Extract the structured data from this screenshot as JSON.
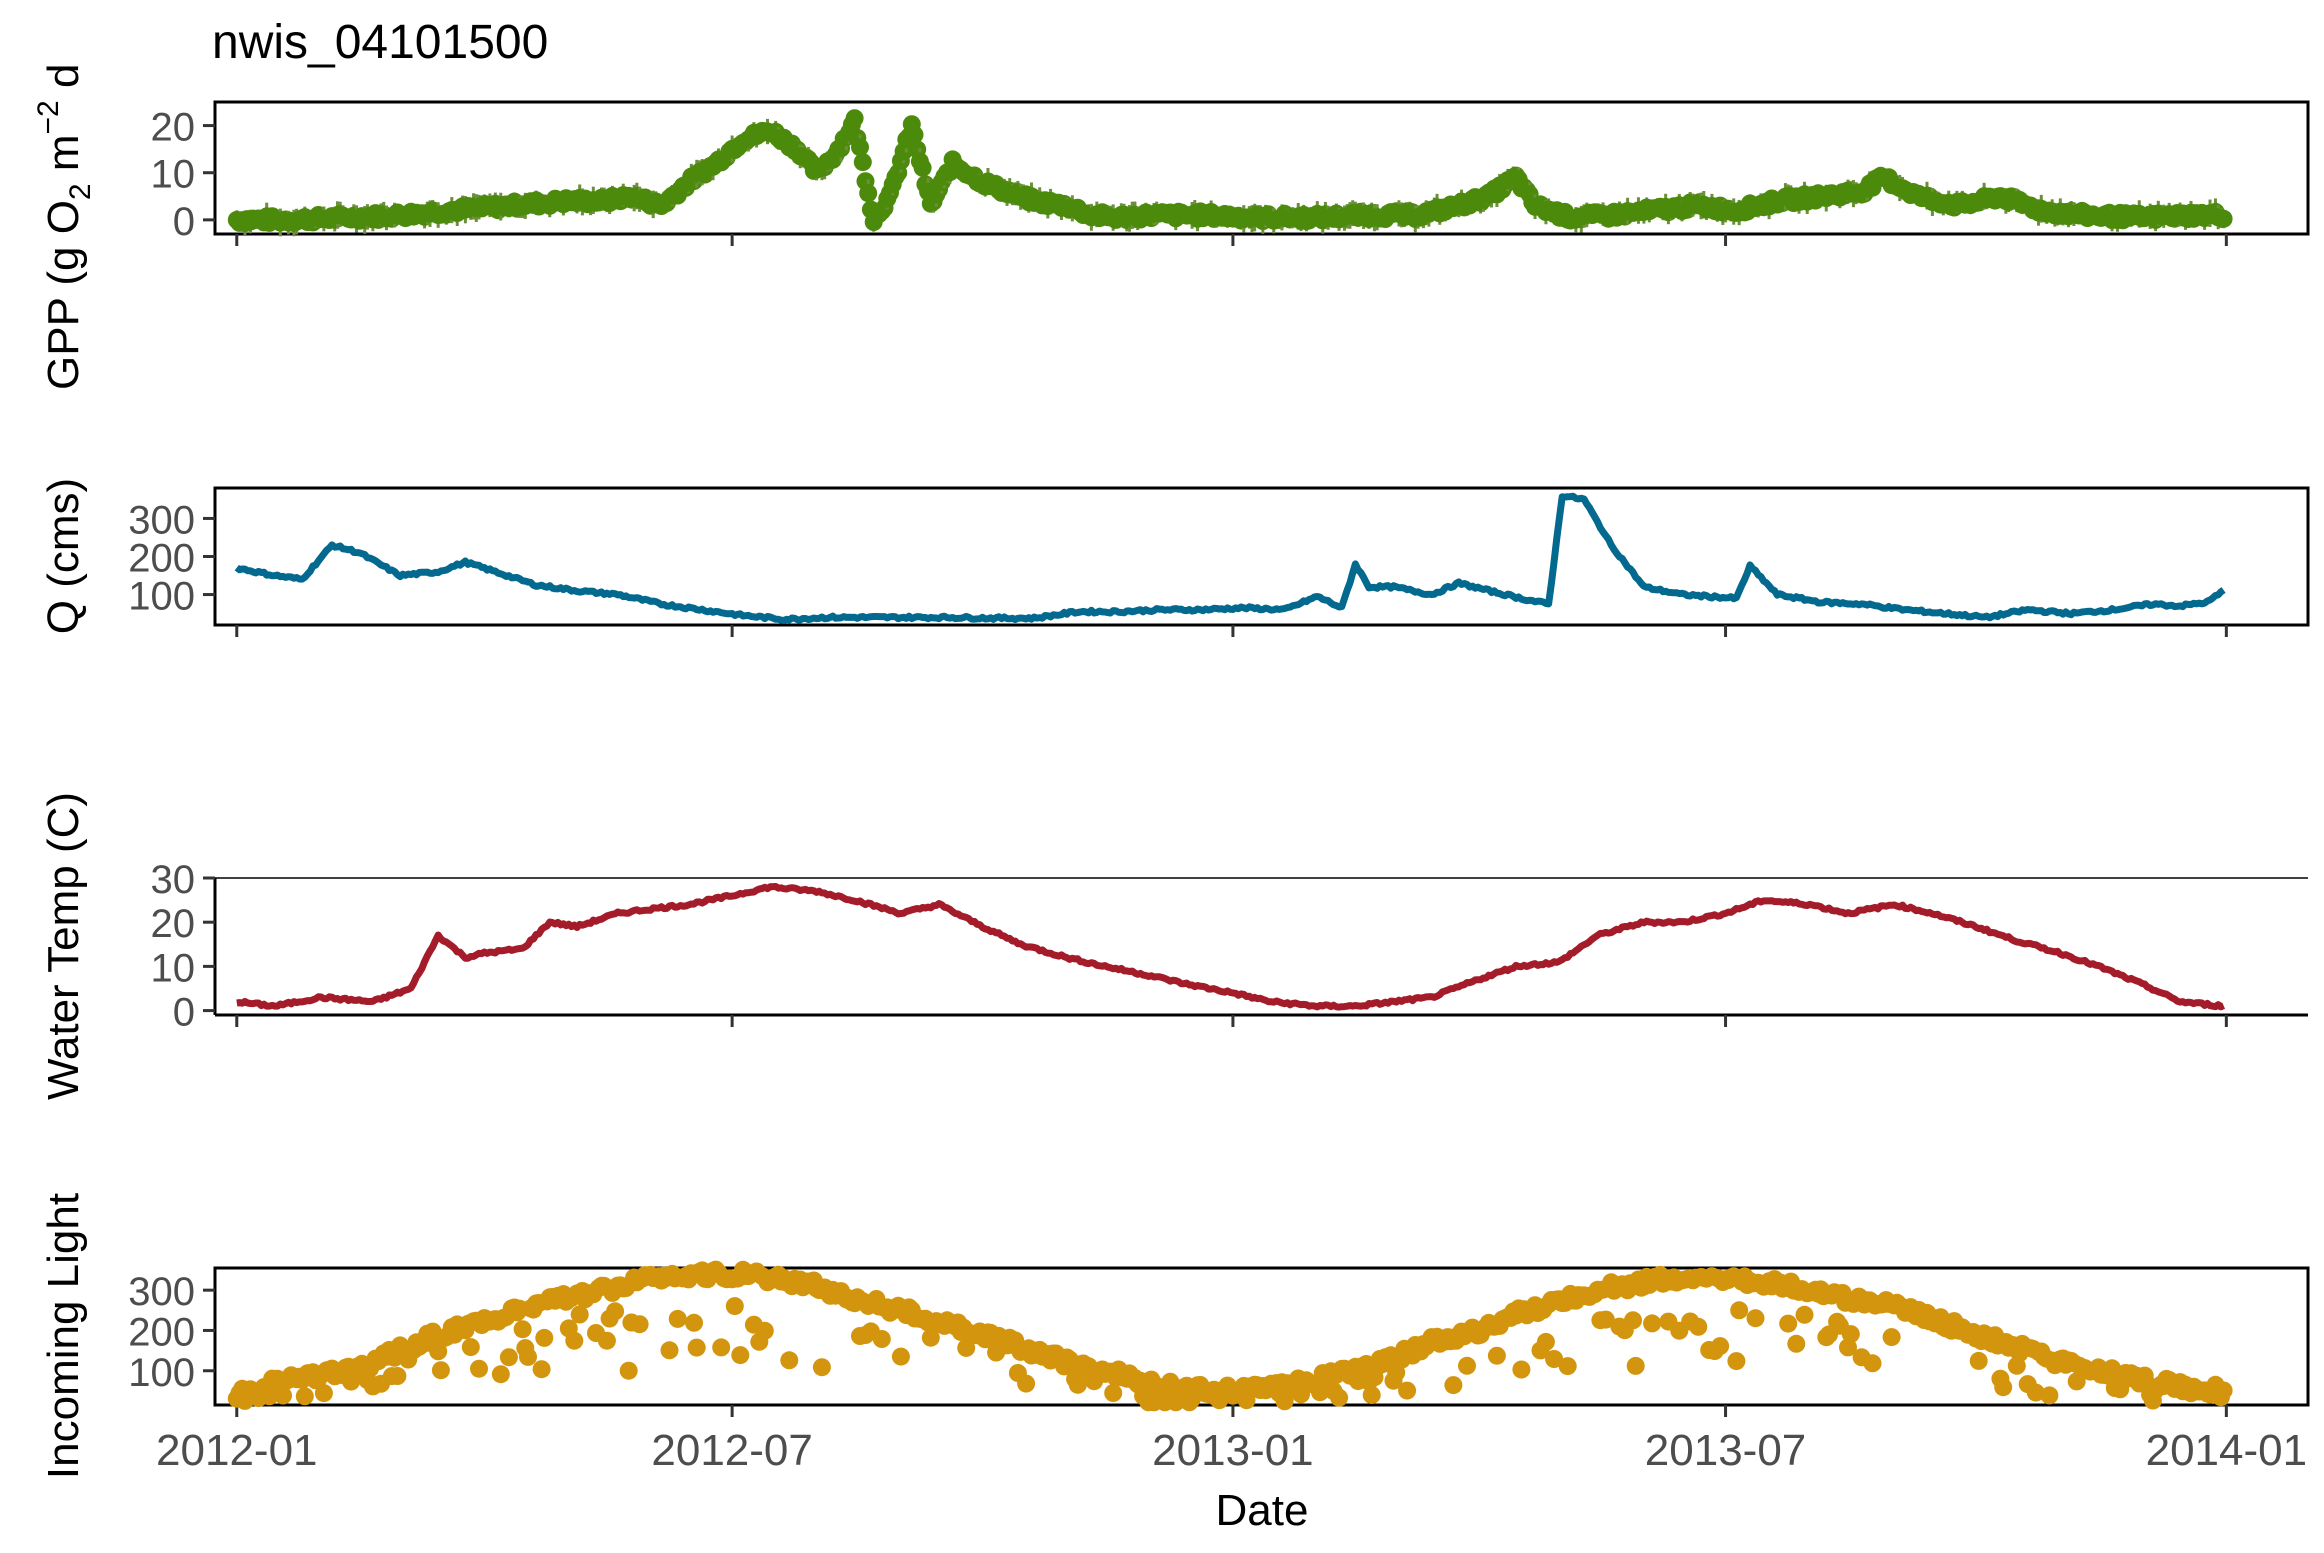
{
  "figure": {
    "title": "nwis_04101500",
    "xlabel": "Date",
    "x_tick_labels": [
      "2012-01",
      "2012-07",
      "2013-01",
      "2013-07",
      "2014-01"
    ],
    "x_tick_dates": [
      "2012-01-01",
      "2012-07-01",
      "2013-01-01",
      "2013-07-01",
      "2014-01-01"
    ],
    "xlim": [
      "2011-12-24",
      "2014-01-31"
    ]
  },
  "chart_data": [
    {
      "type": "scatter",
      "panel": "gpp",
      "ylabel": "GPP (g O2 m-2 d-1)",
      "ylabel_parts": {
        "pre": "GPP (g  O",
        "sub": "2",
        "mid": " m",
        "sup1": "−2",
        "post": " d"
      },
      "ylim": [
        -3,
        25
      ],
      "y_ticks": [
        0,
        10,
        20
      ],
      "y_tick_labels": [
        "0",
        "10",
        "20"
      ],
      "color": "#4c8a0b",
      "error_bars": true,
      "series": [
        {
          "dates": [
            "2012-01-01",
            "2012-01-20",
            "2012-02-10",
            "2012-03-01",
            "2012-03-20",
            "2012-04-10",
            "2012-05-01",
            "2012-05-15",
            "2012-05-25",
            "2012-06-05",
            "2012-06-15",
            "2012-06-25",
            "2012-07-05",
            "2012-07-15",
            "2012-07-25",
            "2012-08-01",
            "2012-08-08",
            "2012-08-15",
            "2012-08-22",
            "2012-08-28",
            "2012-09-05",
            "2012-09-12",
            "2012-09-20",
            "2012-10-01",
            "2012-10-10",
            "2012-10-20",
            "2012-11-01",
            "2012-11-10",
            "2012-11-20",
            "2012-12-01",
            "2012-12-20",
            "2013-01-10",
            "2013-02-01",
            "2013-02-20",
            "2013-03-10",
            "2013-03-25",
            "2013-04-05",
            "2013-04-15",
            "2013-04-22",
            "2013-05-05",
            "2013-05-20",
            "2013-06-05",
            "2013-06-20",
            "2013-07-05",
            "2013-07-20",
            "2013-08-05",
            "2013-08-20",
            "2013-08-28",
            "2013-09-10",
            "2013-09-25",
            "2013-10-10",
            "2013-10-25",
            "2013-11-10",
            "2013-12-01",
            "2013-12-20",
            "2013-12-31"
          ],
          "values": [
            0,
            0,
            0.5,
            1,
            2,
            3,
            4,
            4,
            5,
            3,
            8,
            12,
            17,
            19,
            15,
            10,
            14,
            21,
            0,
            5,
            20,
            3,
            12,
            8,
            6,
            4,
            3,
            1,
            0.5,
            1,
            1,
            0.5,
            0.5,
            1,
            1,
            3,
            5,
            9,
            3,
            0.5,
            1,
            2,
            3,
            2,
            4,
            5,
            6,
            9,
            5,
            3,
            5,
            2,
            1,
            0.5,
            1,
            1
          ]
        }
      ]
    },
    {
      "type": "line",
      "panel": "q",
      "ylabel": "Q (cms)",
      "ylim": [
        20,
        380
      ],
      "y_ticks": [
        100,
        200,
        300
      ],
      "y_tick_labels": [
        "100",
        "200",
        "300"
      ],
      "color": "#04698f",
      "series": [
        {
          "dates": [
            "2012-01-01",
            "2012-01-15",
            "2012-01-25",
            "2012-02-05",
            "2012-02-15",
            "2012-03-01",
            "2012-03-15",
            "2012-03-25",
            "2012-04-05",
            "2012-04-20",
            "2012-05-05",
            "2012-05-20",
            "2012-06-05",
            "2012-06-20",
            "2012-07-05",
            "2012-07-20",
            "2012-08-05",
            "2012-08-20",
            "2012-09-05",
            "2012-09-20",
            "2012-10-05",
            "2012-10-20",
            "2012-11-05",
            "2012-11-20",
            "2012-12-05",
            "2012-12-20",
            "2013-01-05",
            "2013-01-20",
            "2013-02-01",
            "2013-02-10",
            "2013-02-15",
            "2013-02-20",
            "2013-03-01",
            "2013-03-15",
            "2013-03-25",
            "2013-04-05",
            "2013-04-20",
            "2013-04-27",
            "2013-05-02",
            "2013-05-10",
            "2013-05-20",
            "2013-06-01",
            "2013-06-15",
            "2013-06-25",
            "2013-07-05",
            "2013-07-10",
            "2013-07-20",
            "2013-08-05",
            "2013-08-20",
            "2013-09-05",
            "2013-09-20",
            "2013-10-05",
            "2013-10-20",
            "2013-11-05",
            "2013-11-20",
            "2013-12-05",
            "2013-12-15",
            "2013-12-25",
            "2013-12-31"
          ],
          "values": [
            170,
            150,
            140,
            230,
            210,
            150,
            160,
            185,
            160,
            125,
            110,
            100,
            75,
            60,
            45,
            35,
            40,
            40,
            40,
            40,
            38,
            38,
            55,
            55,
            60,
            60,
            65,
            60,
            95,
            65,
            180,
            120,
            120,
            100,
            130,
            110,
            85,
            75,
            360,
            350,
            230,
            120,
            100,
            95,
            90,
            175,
            100,
            80,
            75,
            60,
            50,
            40,
            60,
            50,
            60,
            75,
            70,
            80,
            110
          ]
        }
      ]
    },
    {
      "type": "line",
      "panel": "temp",
      "ylabel": "Water Temp (C)",
      "ylim": [
        -1,
        30
      ],
      "y_ticks": [
        0,
        10,
        20,
        30
      ],
      "y_tick_labels": [
        "0",
        "10",
        "20",
        "30"
      ],
      "color": "#a41c2a",
      "series": [
        {
          "dates": [
            "2012-01-01",
            "2012-01-15",
            "2012-02-01",
            "2012-02-20",
            "2012-03-05",
            "2012-03-15",
            "2012-03-25",
            "2012-04-01",
            "2012-04-15",
            "2012-04-25",
            "2012-05-05",
            "2012-05-20",
            "2012-06-01",
            "2012-06-15",
            "2012-07-01",
            "2012-07-15",
            "2012-08-01",
            "2012-08-15",
            "2012-09-01",
            "2012-09-15",
            "2012-10-01",
            "2012-10-15",
            "2012-11-01",
            "2012-11-15",
            "2012-12-01",
            "2012-12-15",
            "2013-01-01",
            "2013-01-15",
            "2013-02-01",
            "2013-02-15",
            "2013-03-01",
            "2013-03-15",
            "2013-04-01",
            "2013-04-15",
            "2013-05-01",
            "2013-05-15",
            "2013-06-01",
            "2013-06-15",
            "2013-07-01",
            "2013-07-15",
            "2013-08-01",
            "2013-08-15",
            "2013-09-01",
            "2013-09-15",
            "2013-10-01",
            "2013-10-15",
            "2013-11-01",
            "2013-11-15",
            "2013-12-01",
            "2013-12-15",
            "2013-12-31"
          ],
          "values": [
            2,
            1,
            3,
            2,
            5,
            17,
            12,
            13,
            14,
            20,
            19,
            22,
            23,
            24,
            26,
            28,
            27,
            25,
            22,
            24,
            19,
            15,
            12,
            10,
            8,
            6,
            4,
            2,
            1,
            1,
            2,
            3,
            7,
            10,
            11,
            17,
            20,
            20,
            22,
            25,
            24,
            22,
            24,
            22,
            19,
            16,
            13,
            10,
            6,
            2,
            1
          ]
        }
      ]
    },
    {
      "type": "scatter",
      "panel": "light",
      "ylabel": "Incoming Light",
      "ylim": [
        15,
        355
      ],
      "y_ticks": [
        100,
        200,
        300
      ],
      "y_tick_labels": [
        "100",
        "200",
        "300"
      ],
      "color": "#d2950d",
      "series": [
        {
          "dates": [
            "2012-01-01",
            "2012-01-15",
            "2012-02-01",
            "2012-02-15",
            "2012-03-01",
            "2012-03-15",
            "2012-04-01",
            "2012-04-15",
            "2012-05-01",
            "2012-05-15",
            "2012-06-01",
            "2012-06-15",
            "2012-07-01",
            "2012-07-15",
            "2012-08-01",
            "2012-08-15",
            "2012-09-01",
            "2012-09-15",
            "2012-10-01",
            "2012-10-15",
            "2012-11-01",
            "2012-11-15",
            "2012-12-01",
            "2012-12-15",
            "2013-01-01",
            "2013-01-15",
            "2013-02-01",
            "2013-02-15",
            "2013-03-01",
            "2013-03-15",
            "2013-04-01",
            "2013-04-15",
            "2013-05-01",
            "2013-05-15",
            "2013-06-01",
            "2013-06-15",
            "2013-07-01",
            "2013-07-15",
            "2013-08-01",
            "2013-08-15",
            "2013-09-01",
            "2013-09-15",
            "2013-10-01",
            "2013-10-15",
            "2013-11-01",
            "2013-11-15",
            "2013-12-01",
            "2013-12-15",
            "2013-12-31"
          ],
          "values": [
            50,
            70,
            90,
            110,
            150,
            190,
            220,
            250,
            280,
            300,
            330,
            340,
            340,
            330,
            310,
            280,
            250,
            220,
            190,
            160,
            120,
            100,
            70,
            60,
            50,
            60,
            80,
            100,
            130,
            170,
            200,
            240,
            270,
            300,
            320,
            330,
            330,
            320,
            300,
            280,
            260,
            230,
            190,
            160,
            120,
            100,
            80,
            60,
            50
          ]
        }
      ]
    }
  ]
}
